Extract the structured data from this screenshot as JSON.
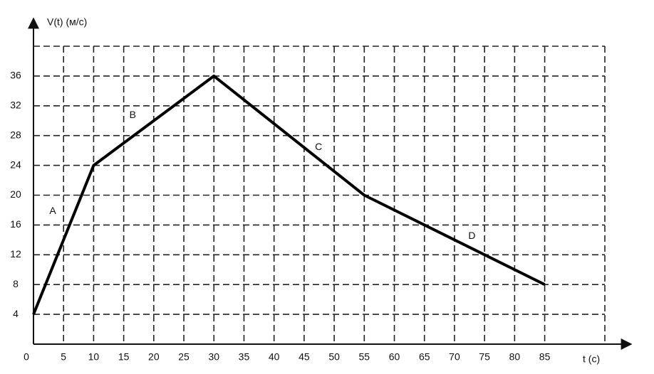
{
  "chart_data": {
    "type": "line",
    "y_label": "V(t) (м/с)",
    "x_label": "t (c)",
    "x": [
      0,
      10,
      30,
      55,
      85
    ],
    "series": [
      {
        "values": [
          4,
          24,
          36,
          20,
          8
        ],
        "color": "#000000"
      }
    ],
    "xlim": [
      0,
      95
    ],
    "ylim": [
      0,
      40
    ],
    "xticks": [
      0,
      5,
      10,
      15,
      20,
      25,
      30,
      35,
      40,
      45,
      50,
      55,
      60,
      65,
      70,
      75,
      80,
      85
    ],
    "yticks": [
      4,
      8,
      12,
      16,
      20,
      24,
      28,
      32,
      36
    ],
    "grid": true,
    "annotations": [
      {
        "text": "A",
        "x": 3.2,
        "y": 17.8
      },
      {
        "text": "B",
        "x": 16.5,
        "y": 30.7
      },
      {
        "text": "C",
        "x": 47.4,
        "y": 26.4
      },
      {
        "text": "D",
        "x": 72.9,
        "y": 14.5
      }
    ]
  }
}
